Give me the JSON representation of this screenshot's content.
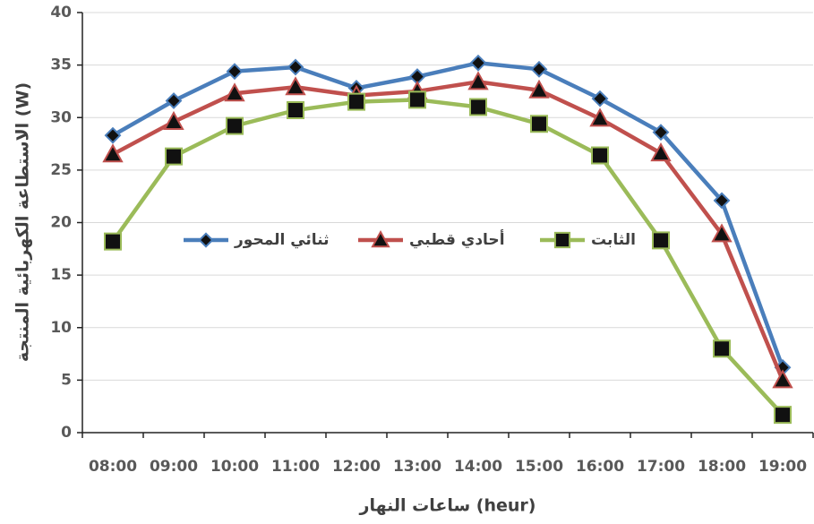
{
  "chart_data": {
    "type": "line",
    "x_label": "ساعات النهار (heur)",
    "y_label": "الاستطاعة الكهربائية المنتجة (W)",
    "categories": [
      "08:00",
      "09:00",
      "10:00",
      "11:00",
      "12:00",
      "13:00",
      "14:00",
      "15:00",
      "16:00",
      "17:00",
      "18:00",
      "19:00"
    ],
    "series": [
      {
        "name": "ثنائي المحور",
        "color": "#4a7ebb",
        "marker": "diamond",
        "values": [
          28.3,
          31.6,
          34.4,
          34.8,
          32.8,
          33.9,
          35.2,
          34.6,
          31.8,
          28.6,
          22.1,
          6.2
        ]
      },
      {
        "name": "أحادي قطبي",
        "color": "#c0504d",
        "marker": "triangle",
        "values": [
          26.5,
          29.6,
          32.3,
          32.9,
          32.1,
          32.5,
          33.4,
          32.6,
          29.9,
          26.6,
          18.9,
          5.0
        ]
      },
      {
        "name": "الثابت",
        "color": "#9bbb59",
        "marker": "square",
        "values": [
          18.2,
          26.3,
          29.2,
          30.7,
          31.5,
          31.7,
          31.0,
          29.4,
          26.4,
          18.3,
          8.0,
          1.7
        ]
      }
    ],
    "ylim": [
      0,
      40
    ],
    "yticks": [
      0,
      5,
      10,
      15,
      20,
      25,
      30,
      35,
      40
    ],
    "grid": true,
    "legend": "center"
  }
}
